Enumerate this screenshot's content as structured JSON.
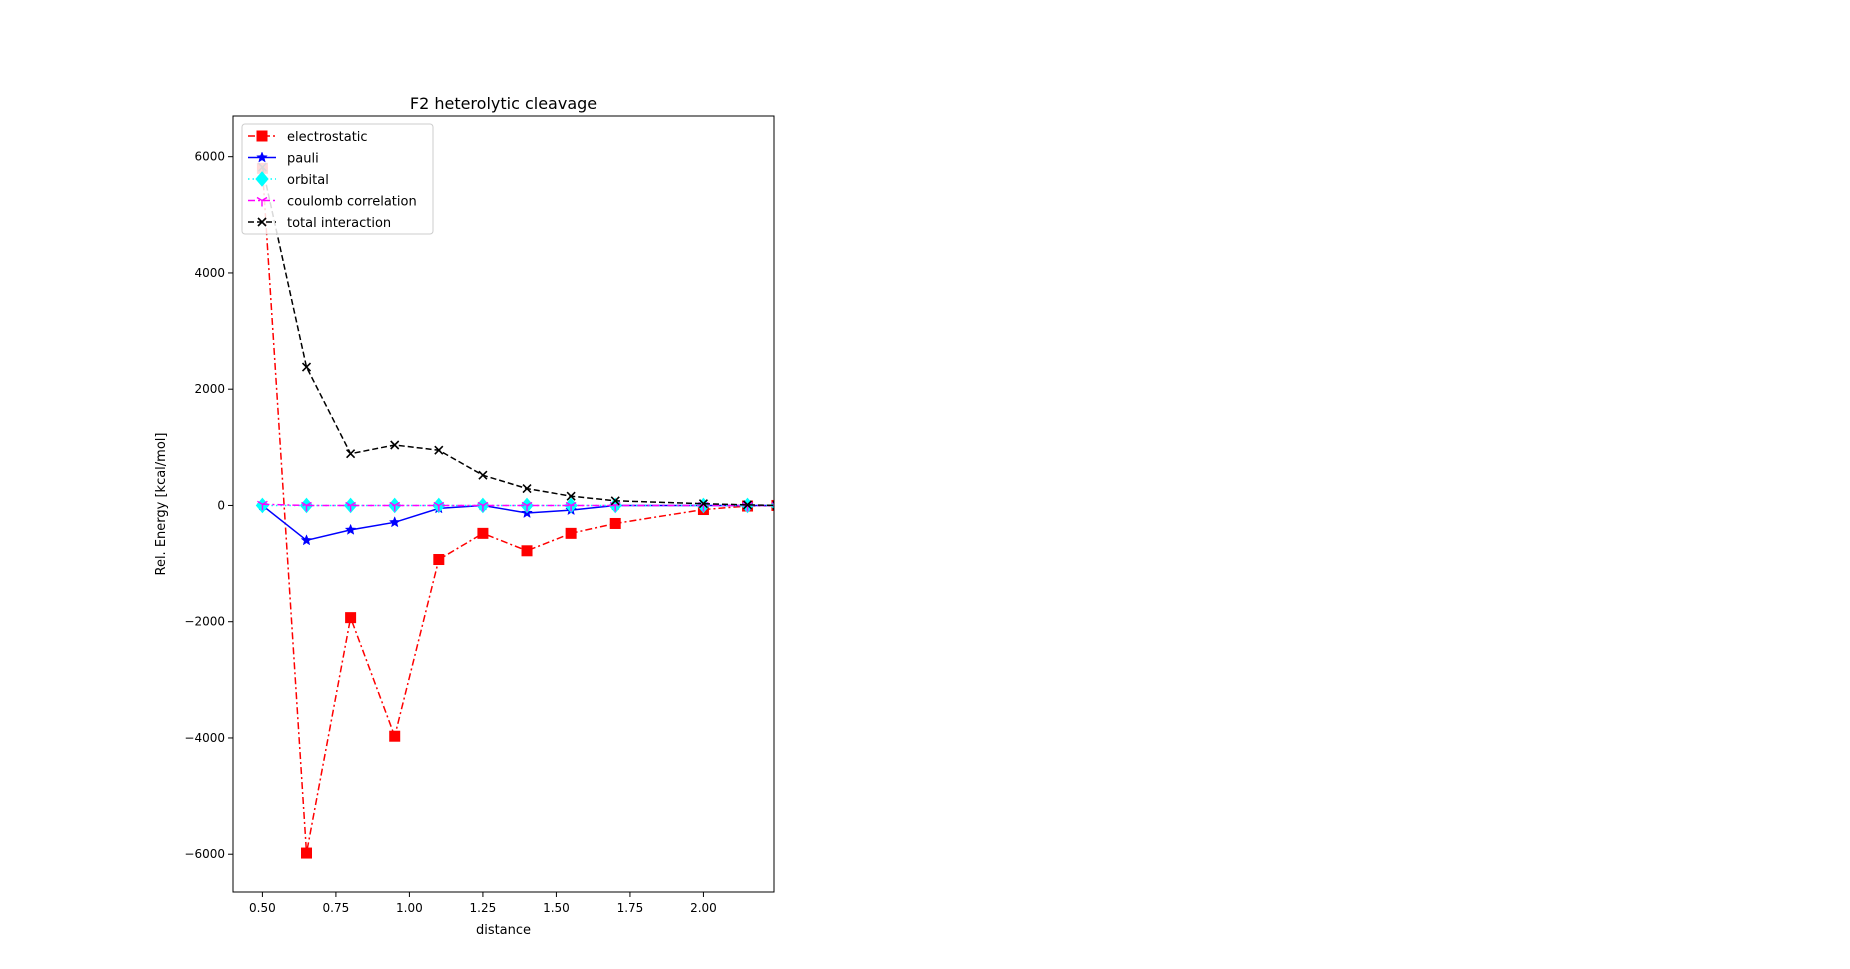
{
  "chart_data": {
    "type": "line",
    "title": "F2 heterolytic cleavage",
    "xlabel": "distance",
    "ylabel": "Rel. Energy [kcal/mol]",
    "xlim": [
      0.4,
      2.24
    ],
    "ylim": [
      -6650,
      6700
    ],
    "xticks": [
      0.5,
      0.75,
      1.0,
      1.25,
      1.5,
      1.75,
      2.0
    ],
    "xtick_labels": [
      "0.50",
      "0.75",
      "1.00",
      "1.25",
      "1.50",
      "1.75",
      "2.00"
    ],
    "yticks": [
      -6000,
      -4000,
      -2000,
      0,
      2000,
      4000,
      6000
    ],
    "ytick_labels": [
      "−6000",
      "−4000",
      "−2000",
      "0",
      "2000",
      "4000",
      "6000"
    ],
    "grid": false,
    "legend_position": "top-left",
    "x": [
      0.5,
      0.65,
      0.8,
      0.95,
      1.1,
      1.25,
      1.4,
      1.55,
      1.7,
      2.0,
      2.15,
      2.25
    ],
    "series": [
      {
        "name": "electrostatic",
        "color": "#ff0000",
        "dash": "dashdot",
        "marker": "square",
        "values": [
          5800,
          -5980,
          -1930,
          -3970,
          -930,
          -480,
          -780,
          -480,
          -310,
          -70,
          -10,
          0
        ]
      },
      {
        "name": "pauli",
        "color": "#0000ff",
        "dash": "solid",
        "marker": "star",
        "values": [
          0,
          -600,
          -420,
          -290,
          -50,
          0,
          -130,
          -80,
          0,
          0,
          0,
          0
        ]
      },
      {
        "name": "orbital",
        "color": "#00ffff",
        "dash": "dotted",
        "marker": "diamond",
        "values": [
          0,
          0,
          0,
          0,
          0,
          0,
          0,
          0,
          0,
          0,
          0,
          0
        ]
      },
      {
        "name": "coulomb correlation",
        "color": "#ff00ff",
        "dash": "dashdot",
        "marker": "tri",
        "values": [
          20,
          0,
          0,
          0,
          0,
          0,
          0,
          0,
          0,
          0,
          0,
          0
        ]
      },
      {
        "name": "total interaction",
        "color": "#000000",
        "dash": "dashed",
        "marker": "x",
        "values": [
          5820,
          2380,
          890,
          1040,
          950,
          520,
          290,
          160,
          80,
          30,
          10,
          0
        ]
      }
    ]
  }
}
